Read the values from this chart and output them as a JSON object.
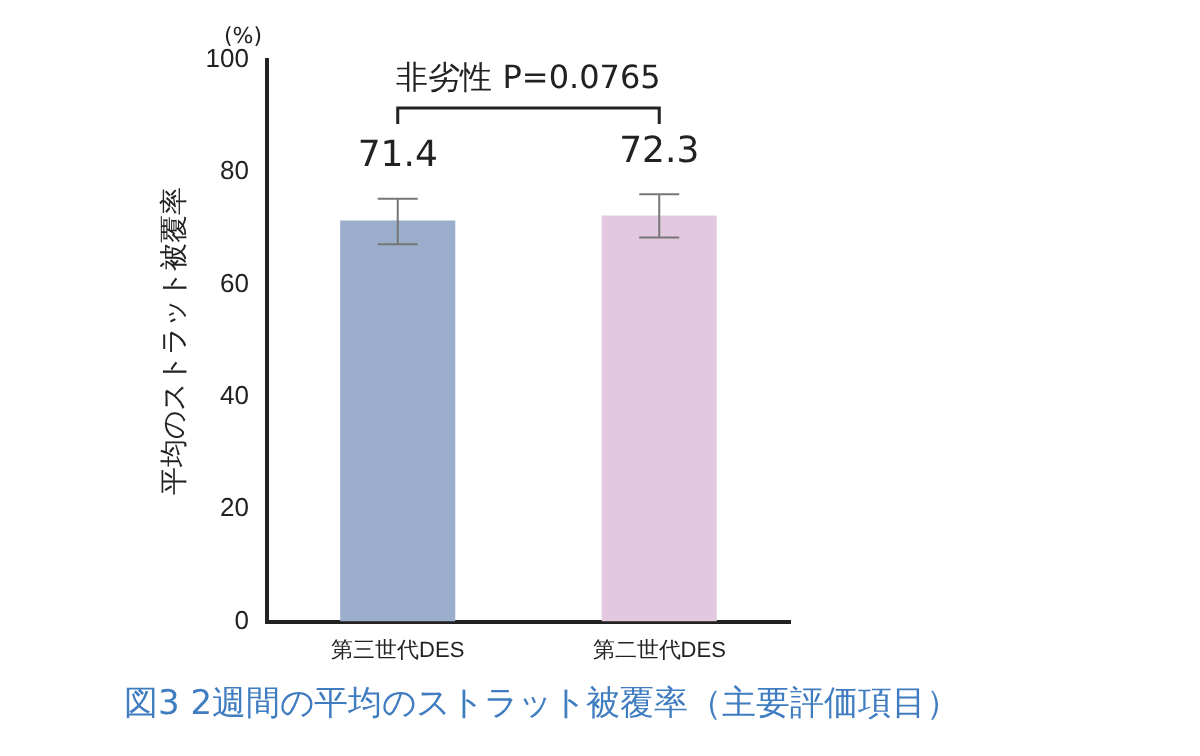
{
  "chart_data": {
    "type": "bar",
    "title": "図3 2週間の平均のストラット被覆率（主要評価項目）",
    "ylabel": "平均のストラット被覆率",
    "categories": [
      "第三世代DES",
      "第二世代DES"
    ],
    "values": [
      71.4,
      72.3
    ],
    "colors": [
      "#9aadcb",
      "#e2c9e0"
    ],
    "errors": [
      [
        67.2,
        75.3
      ],
      [
        68.4,
        76.1
      ]
    ],
    "ylim": [
      0,
      100
    ],
    "yticks": [
      0,
      20,
      40,
      60,
      80,
      100
    ],
    "grid": false,
    "data_labels": true,
    "annotations": [
      "(%)",
      "非劣性 P=0.0765"
    ]
  }
}
